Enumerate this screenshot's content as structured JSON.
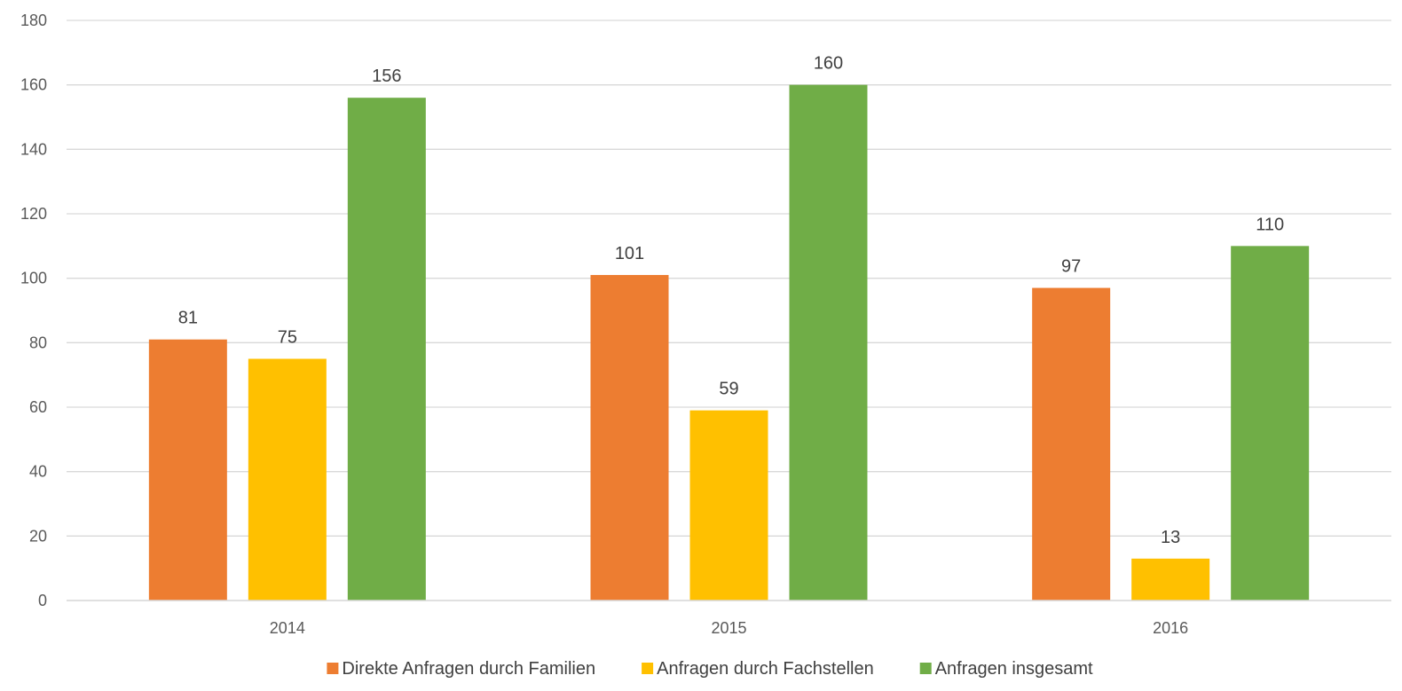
{
  "chart_data": {
    "type": "bar",
    "categories": [
      "2014",
      "2015",
      "2016"
    ],
    "series": [
      {
        "name": "Direkte Anfragen durch Familien",
        "values": [
          81,
          101,
          97
        ],
        "color": "#ED7D31"
      },
      {
        "name": "Anfragen durch Fachstellen",
        "values": [
          75,
          59,
          13
        ],
        "color": "#FFC000"
      },
      {
        "name": "Anfragen insgesamt",
        "values": [
          156,
          160,
          110
        ],
        "color": "#70AD47"
      }
    ],
    "title": "",
    "xlabel": "",
    "ylabel": "",
    "ylim": [
      0,
      180
    ],
    "yticks": [
      0,
      20,
      40,
      60,
      80,
      100,
      120,
      140,
      160,
      180
    ],
    "grid": true,
    "legend_position": "bottom",
    "data_labels": true,
    "gridline_color": "#D9D9D9"
  }
}
